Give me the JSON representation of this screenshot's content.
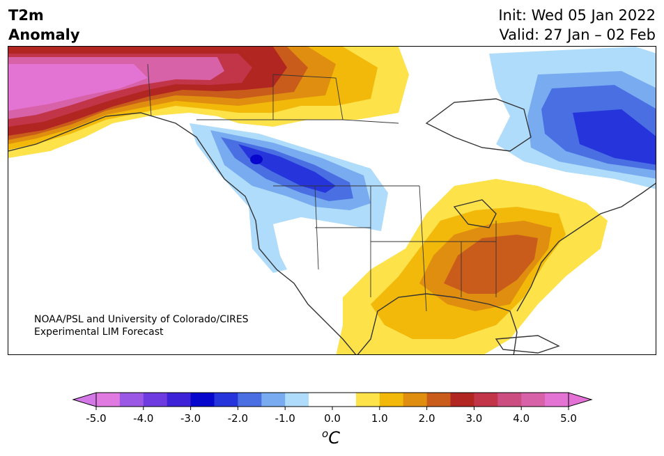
{
  "title": {
    "variable": "T2m",
    "subtitle": "Anomaly",
    "init": "Init: Wed 05 Jan 2022",
    "valid": "Valid: 27 Jan – 02 Feb"
  },
  "credit": {
    "line1": "NOAA/PSL and University of Colorado/CIRES",
    "line2": "Experimental LIM Forecast"
  },
  "colorbar": {
    "ticks": [
      "-5.0",
      "-4.0",
      "-3.0",
      "-2.0",
      "-1.0",
      "0.0",
      "1.0",
      "2.0",
      "3.0",
      "4.0",
      "5.0"
    ],
    "unit_base": "C",
    "unit_sup": "o",
    "colors": [
      "#e07ae0",
      "#9b58e4",
      "#6d3be0",
      "#3d22d8",
      "#0606cc",
      "#2634dc",
      "#4a6fe3",
      "#78abf0",
      "#b0dcfb",
      "#ffffff",
      "#ffffff",
      "#fde24a",
      "#f2b90a",
      "#e08e0f",
      "#c95c1a",
      "#b22622",
      "#c23448",
      "#cc4e80",
      "#d862a8",
      "#e474d4"
    ],
    "under_color": "#d478e8",
    "over_color": "#e472d6"
  },
  "map": {
    "region": "North America",
    "anomalies": [
      {
        "area": "Alaska",
        "color": "#e474d4"
      },
      {
        "area": "Yukon / NW Canada",
        "color": "#b22622"
      },
      {
        "area": "Northern Rockies / Montana",
        "color": "#0606cc"
      },
      {
        "area": "Hudson Bay / Quebec",
        "color": "#2634dc"
      },
      {
        "area": "Southeastern US",
        "color": "#c95c1a"
      },
      {
        "area": "Gulf / Mexico",
        "color": "#fde24a"
      }
    ]
  }
}
